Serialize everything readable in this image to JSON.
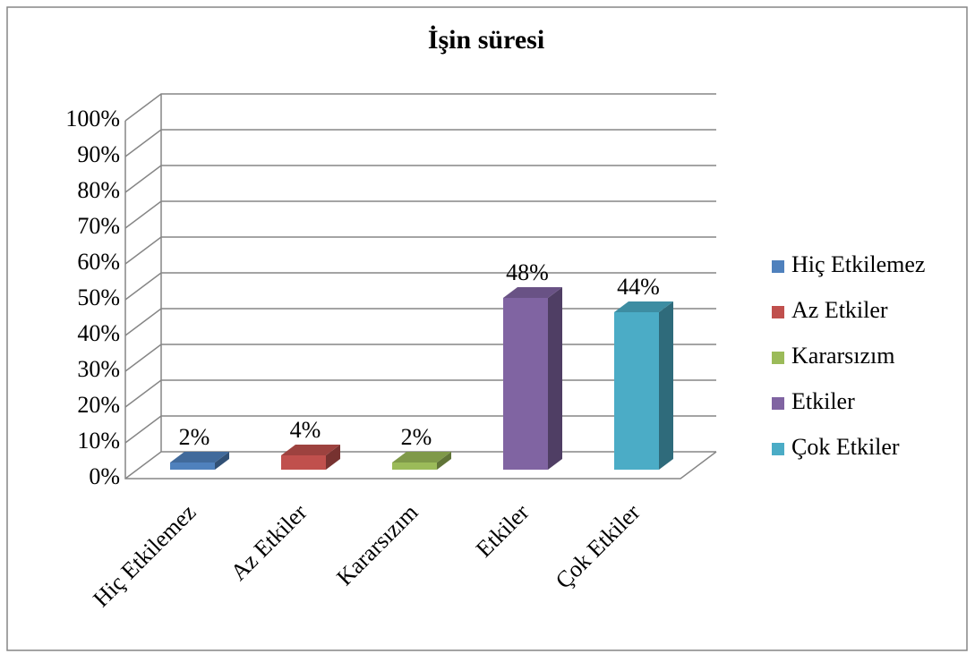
{
  "chart_data": {
    "type": "bar",
    "title": "İşin süresi",
    "categories": [
      "Hiç Etkilemez",
      "Az Etkiler",
      "Kararsızım",
      "Etkiler",
      "Çok Etkiler"
    ],
    "values": [
      2,
      4,
      2,
      48,
      44
    ],
    "value_labels": [
      "2%",
      "4%",
      "2%",
      "48%",
      "44%"
    ],
    "colors": [
      "#4f81bd",
      "#c0504d",
      "#9bbb59",
      "#8064a2",
      "#4bacc6"
    ],
    "ylim": [
      0,
      100
    ],
    "yticks": [
      {
        "value": 0,
        "label": "0%"
      },
      {
        "value": 10,
        "label": "10%"
      },
      {
        "value": 20,
        "label": "20%"
      },
      {
        "value": 30,
        "label": "30%"
      },
      {
        "value": 40,
        "label": "40%"
      },
      {
        "value": 50,
        "label": "50%"
      },
      {
        "value": 60,
        "label": "60%"
      },
      {
        "value": 70,
        "label": "70%"
      },
      {
        "value": 80,
        "label": "80%"
      },
      {
        "value": 90,
        "label": "90%"
      },
      {
        "value": 100,
        "label": "100%"
      }
    ],
    "grid": true,
    "legend": "right"
  }
}
